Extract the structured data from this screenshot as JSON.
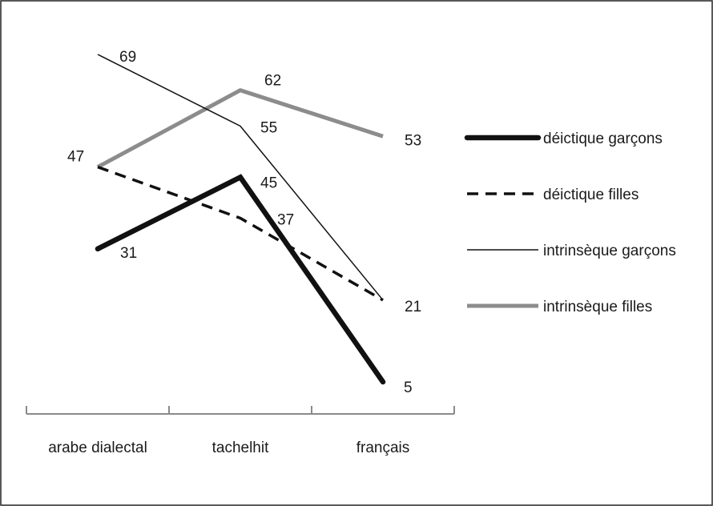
{
  "chart_data": {
    "type": "line",
    "categories": [
      "arabe dialectal",
      "tachelhit",
      "français"
    ],
    "series": [
      {
        "name": "déictique garçons",
        "values": [
          31,
          45,
          5
        ],
        "color": "#111111",
        "style": "thick-solid"
      },
      {
        "name": "déictique filles",
        "values": [
          47,
          37,
          21
        ],
        "color": "#111111",
        "style": "dashed"
      },
      {
        "name": "intrinsèque garçons",
        "values": [
          69,
          55,
          21
        ],
        "color": "#111111",
        "style": "thin-solid"
      },
      {
        "name": "intrinsèque filles",
        "values": [
          47,
          62,
          53
        ],
        "color": "#8c8c8c",
        "style": "thick-solid-gray"
      }
    ],
    "data_labels": [
      {
        "series": "intrinsèque garçons",
        "category": "arabe dialectal",
        "text": "69"
      },
      {
        "series": "déictique filles",
        "category": "arabe dialectal",
        "text": "47"
      },
      {
        "series": "déictique garçons",
        "category": "arabe dialectal",
        "text": "31"
      },
      {
        "series": "intrinsèque filles",
        "category": "tachelhit",
        "text": "62"
      },
      {
        "series": "intrinsèque garçons",
        "category": "tachelhit",
        "text": "55"
      },
      {
        "series": "déictique garçons",
        "category": "tachelhit",
        "text": "45"
      },
      {
        "series": "déictique filles",
        "category": "tachelhit",
        "text": "37"
      },
      {
        "series": "intrinsèque filles",
        "category": "français",
        "text": "53"
      },
      {
        "series": "déictique filles",
        "category": "français",
        "text": "21"
      },
      {
        "series": "déictique garçons",
        "category": "français",
        "text": "5"
      }
    ],
    "xlabel": "",
    "ylabel": "",
    "ylim": [
      5,
      69
    ],
    "grid": false,
    "legend_position": "right",
    "frame_color": "#222222",
    "axis_color": "#8a8a8a"
  }
}
